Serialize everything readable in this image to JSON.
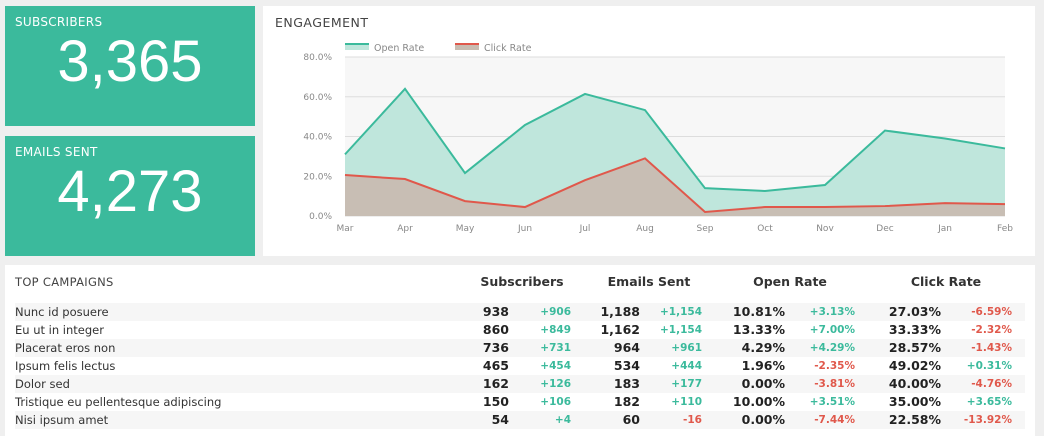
{
  "tiles": {
    "subscribers": {
      "label": "SUBSCRIBERS",
      "value": "3,365"
    },
    "emails_sent": {
      "label": "EMAILS SENT",
      "value": "4,273"
    }
  },
  "colors": {
    "accent": "#3bba9c",
    "negative": "#e0584b",
    "open_fill": "#bfe6dc",
    "click_fill": "#c8bcb1"
  },
  "chart_data": {
    "type": "area",
    "title": "ENGAGEMENT",
    "legend_position": "top-left",
    "grid": true,
    "categories": [
      "Mar",
      "Apr",
      "May",
      "Jun",
      "Jul",
      "Aug",
      "Sep",
      "Oct",
      "Nov",
      "Dec",
      "Jan",
      "Feb"
    ],
    "y_ticks": [
      "0.0%",
      "20.0%",
      "40.0%",
      "60.0%",
      "80.0%"
    ],
    "ylim": [
      0,
      80
    ],
    "series": [
      {
        "name": "Open Rate",
        "color": "#3bba9c",
        "values": [
          31,
          64,
          21.6,
          45.8,
          61.4,
          53.3,
          14,
          12.6,
          15.6,
          43,
          39,
          34
        ]
      },
      {
        "name": "Click Rate",
        "color": "#e0584b",
        "values": [
          20.6,
          18.6,
          7.5,
          4.5,
          18,
          29,
          2,
          4.5,
          4.5,
          5,
          6.5,
          6
        ]
      }
    ]
  },
  "table": {
    "title": "TOP CAMPAIGNS",
    "headers": [
      "Subscribers",
      "Emails Sent",
      "Open Rate",
      "Click Rate"
    ],
    "rows": [
      {
        "name": "Nunc id posuere",
        "subs": "938",
        "subs_d": "+906",
        "sent": "1,188",
        "sent_d": "+1,154",
        "open": "10.81%",
        "open_d": "+3.13%",
        "click": "27.03%",
        "click_d": "-6.59%"
      },
      {
        "name": "Eu ut in integer",
        "subs": "860",
        "subs_d": "+849",
        "sent": "1,162",
        "sent_d": "+1,154",
        "open": "13.33%",
        "open_d": "+7.00%",
        "click": "33.33%",
        "click_d": "-2.32%"
      },
      {
        "name": "Placerat eros non",
        "subs": "736",
        "subs_d": "+731",
        "sent": "964",
        "sent_d": "+961",
        "open": "4.29%",
        "open_d": "+4.29%",
        "click": "28.57%",
        "click_d": "-1.43%"
      },
      {
        "name": "Ipsum felis lectus",
        "subs": "465",
        "subs_d": "+454",
        "sent": "534",
        "sent_d": "+444",
        "open": "1.96%",
        "open_d": "-2.35%",
        "click": "49.02%",
        "click_d": "+0.31%"
      },
      {
        "name": "Dolor sed",
        "subs": "162",
        "subs_d": "+126",
        "sent": "183",
        "sent_d": "+177",
        "open": "0.00%",
        "open_d": "-3.81%",
        "click": "40.00%",
        "click_d": "-4.76%"
      },
      {
        "name": "Tristique eu pellentesque adipiscing",
        "subs": "150",
        "subs_d": "+106",
        "sent": "182",
        "sent_d": "+110",
        "open": "10.00%",
        "open_d": "+3.51%",
        "click": "35.00%",
        "click_d": "+3.65%"
      },
      {
        "name": "Nisi ipsum amet",
        "subs": "54",
        "subs_d": "+4",
        "sent": "60",
        "sent_d": "-16",
        "open": "0.00%",
        "open_d": "-7.44%",
        "click": "22.58%",
        "click_d": "-13.92%"
      }
    ]
  }
}
